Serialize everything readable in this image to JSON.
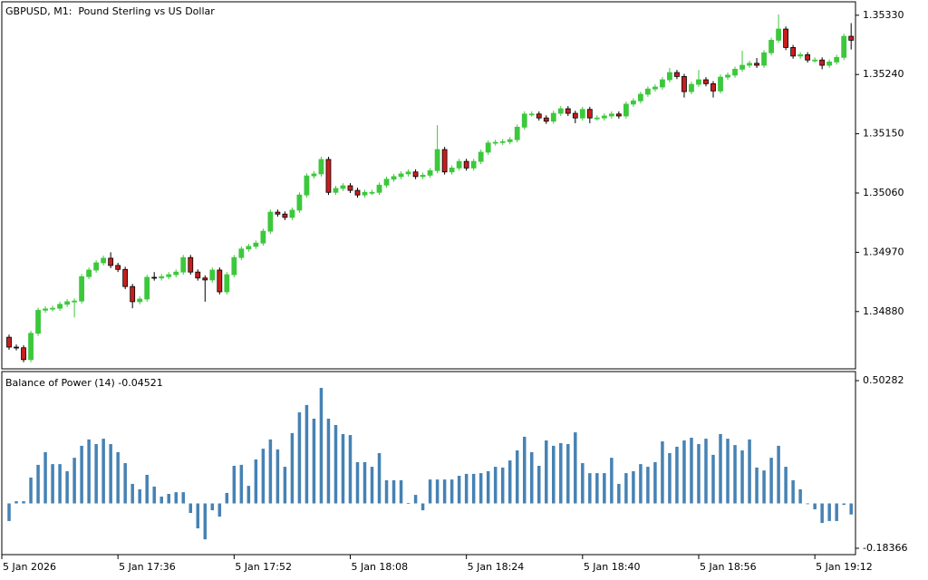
{
  "chart_data": [
    {
      "type": "candlestick",
      "title": "GBPUSD, M1:  Pound Sterling vs US Dollar",
      "up_color": "#3cc83c",
      "down_color": "#c81e1e",
      "xlim": [
        -1,
        116.6
      ],
      "ylim": [
        1.34793,
        1.35349
      ],
      "yticks": [
        {
          "value": 1.3533,
          "label": "1.35330"
        },
        {
          "value": 1.3524,
          "label": "1.35240"
        },
        {
          "value": 1.3515,
          "label": "1.35150"
        },
        {
          "value": 1.3506,
          "label": "1.35060"
        },
        {
          "value": 1.3497,
          "label": "1.34970"
        },
        {
          "value": 1.3488,
          "label": "1.34880"
        }
      ],
      "open": [
        1.34841,
        1.34826,
        1.34825,
        1.34807,
        1.34847,
        1.34882,
        1.34884,
        1.34885,
        1.34891,
        1.34895,
        1.34896,
        1.34933,
        1.34943,
        1.34954,
        1.34961,
        1.3495,
        1.34944,
        1.34918,
        1.34895,
        1.34899,
        1.34932,
        1.34931,
        1.34933,
        1.34936,
        1.3494,
        1.34962,
        1.3494,
        1.34931,
        1.34928,
        1.34943,
        1.3491,
        1.34936,
        1.34962,
        1.34975,
        1.34979,
        1.34984,
        1.35002,
        1.35031,
        1.35028,
        1.35023,
        1.35034,
        1.35057,
        1.35086,
        1.35089,
        1.35111,
        1.35061,
        1.35067,
        1.35071,
        1.35064,
        1.35057,
        1.35061,
        1.35061,
        1.35072,
        1.35081,
        1.35085,
        1.35089,
        1.35092,
        1.35085,
        1.35087,
        1.35094,
        1.35126,
        1.35092,
        1.35098,
        1.35108,
        1.35098,
        1.35108,
        1.35122,
        1.35136,
        1.35137,
        1.35138,
        1.35141,
        1.3516,
        1.3518,
        1.3518,
        1.35174,
        1.35169,
        1.35181,
        1.35188,
        1.35181,
        1.35174,
        1.35187,
        1.35174,
        1.35174,
        1.35177,
        1.3518,
        1.35177,
        1.35195,
        1.352,
        1.3521,
        1.35218,
        1.35221,
        1.35232,
        1.35243,
        1.35237,
        1.35214,
        1.35225,
        1.35232,
        1.35226,
        1.35215,
        1.35236,
        1.35239,
        1.35248,
        1.35254,
        1.35257,
        1.35254,
        1.35273,
        1.35292,
        1.35309,
        1.35281,
        1.35268,
        1.3527,
        1.35262,
        1.35262,
        1.35254,
        1.35259,
        1.35266,
        1.35298
      ],
      "high": [
        1.34845,
        1.3483,
        1.34829,
        1.34851,
        1.34886,
        1.34888,
        1.34889,
        1.34895,
        1.34899,
        1.349,
        1.34937,
        1.34947,
        1.34958,
        1.34965,
        1.3497,
        1.34954,
        1.34948,
        1.34922,
        1.34903,
        1.34936,
        1.3494,
        1.34937,
        1.3494,
        1.34944,
        1.34966,
        1.34966,
        1.34944,
        1.34935,
        1.34947,
        1.34947,
        1.3494,
        1.34966,
        1.34979,
        1.34983,
        1.34988,
        1.35006,
        1.35035,
        1.35035,
        1.35032,
        1.35038,
        1.35061,
        1.3509,
        1.35093,
        1.35115,
        1.35115,
        1.35071,
        1.35075,
        1.35075,
        1.35068,
        1.35065,
        1.35065,
        1.35076,
        1.35085,
        1.35089,
        1.35093,
        1.35096,
        1.35096,
        1.35091,
        1.35098,
        1.35163,
        1.3513,
        1.35102,
        1.35112,
        1.35112,
        1.35112,
        1.35126,
        1.3514,
        1.35141,
        1.35142,
        1.35145,
        1.35164,
        1.35184,
        1.35184,
        1.35184,
        1.35178,
        1.35185,
        1.35192,
        1.35192,
        1.35185,
        1.35191,
        1.35191,
        1.35178,
        1.35181,
        1.35184,
        1.35184,
        1.35199,
        1.35204,
        1.35214,
        1.35222,
        1.35225,
        1.35236,
        1.3525,
        1.35247,
        1.35241,
        1.35229,
        1.35247,
        1.35236,
        1.3523,
        1.3524,
        1.35243,
        1.35252,
        1.35276,
        1.35261,
        1.35265,
        1.35277,
        1.35296,
        1.35331,
        1.35313,
        1.35285,
        1.35274,
        1.35274,
        1.35266,
        1.35266,
        1.35263,
        1.3527,
        1.35302,
        1.35318
      ],
      "low": [
        1.34822,
        1.34821,
        1.34803,
        1.34803,
        1.34843,
        1.34878,
        1.3488,
        1.34881,
        1.34887,
        1.34871,
        1.34892,
        1.34929,
        1.34939,
        1.3495,
        1.34946,
        1.3494,
        1.34914,
        1.34885,
        1.34891,
        1.34895,
        1.34927,
        1.34927,
        1.34929,
        1.34932,
        1.34936,
        1.34936,
        1.34927,
        1.34895,
        1.34924,
        1.34906,
        1.34906,
        1.34932,
        1.34958,
        1.34971,
        1.34975,
        1.3498,
        1.34998,
        1.35024,
        1.35019,
        1.35019,
        1.3503,
        1.35053,
        1.35082,
        1.35085,
        1.35057,
        1.35057,
        1.35063,
        1.3506,
        1.35053,
        1.35053,
        1.35057,
        1.35057,
        1.35068,
        1.35077,
        1.35081,
        1.35085,
        1.35081,
        1.35081,
        1.35083,
        1.3509,
        1.35088,
        1.35088,
        1.35094,
        1.35094,
        1.35094,
        1.35104,
        1.35118,
        1.35132,
        1.35133,
        1.35134,
        1.35137,
        1.35156,
        1.35176,
        1.3517,
        1.35165,
        1.35165,
        1.35177,
        1.35177,
        1.35166,
        1.3517,
        1.35166,
        1.3517,
        1.3517,
        1.35173,
        1.35173,
        1.35173,
        1.35191,
        1.35196,
        1.35206,
        1.35214,
        1.35217,
        1.35228,
        1.35233,
        1.35205,
        1.3521,
        1.35221,
        1.35222,
        1.35205,
        1.35211,
        1.35232,
        1.35235,
        1.35244,
        1.3525,
        1.3525,
        1.3525,
        1.35269,
        1.35288,
        1.35277,
        1.35264,
        1.35264,
        1.35258,
        1.35258,
        1.35248,
        1.3525,
        1.35255,
        1.35262,
        1.35278
      ],
      "close": [
        1.34826,
        1.34825,
        1.34807,
        1.34847,
        1.34882,
        1.34884,
        1.34885,
        1.34891,
        1.34895,
        1.34896,
        1.34933,
        1.34943,
        1.34954,
        1.34961,
        1.3495,
        1.34944,
        1.34918,
        1.34895,
        1.34899,
        1.34932,
        1.34931,
        1.34933,
        1.34936,
        1.3494,
        1.34962,
        1.3494,
        1.34931,
        1.34928,
        1.34943,
        1.3491,
        1.34936,
        1.34962,
        1.34975,
        1.34979,
        1.34984,
        1.35002,
        1.35031,
        1.35028,
        1.35023,
        1.35034,
        1.35057,
        1.35086,
        1.35089,
        1.35111,
        1.35061,
        1.35067,
        1.35071,
        1.35064,
        1.35057,
        1.35061,
        1.35061,
        1.35072,
        1.35081,
        1.35085,
        1.35089,
        1.35092,
        1.35085,
        1.35087,
        1.35094,
        1.35126,
        1.35092,
        1.35098,
        1.35108,
        1.35098,
        1.35108,
        1.35122,
        1.35136,
        1.35137,
        1.35138,
        1.35141,
        1.3516,
        1.3518,
        1.3518,
        1.35174,
        1.35169,
        1.35181,
        1.35188,
        1.35181,
        1.35174,
        1.35187,
        1.35174,
        1.35174,
        1.35177,
        1.3518,
        1.35177,
        1.35195,
        1.352,
        1.3521,
        1.35218,
        1.35221,
        1.35232,
        1.35243,
        1.35237,
        1.35214,
        1.35225,
        1.35232,
        1.35226,
        1.35215,
        1.35236,
        1.35239,
        1.35248,
        1.35254,
        1.35257,
        1.35254,
        1.35273,
        1.35292,
        1.35309,
        1.35281,
        1.35268,
        1.3527,
        1.35262,
        1.35262,
        1.35254,
        1.35259,
        1.35266,
        1.35298,
        1.35292
      ]
    },
    {
      "type": "bar",
      "title": "Balance of Power (14) -0.04521",
      "color": "#4682b4",
      "xlim": [
        -1,
        116.6
      ],
      "ylim": [
        -0.2096,
        0.5399
      ],
      "yticks": [
        0.50282,
        -0.18366
      ],
      "xticks": [
        {
          "value": -1,
          "label": "5 Jan 2026"
        },
        {
          "value": 15,
          "label": "5 Jan 17:36"
        },
        {
          "value": 31,
          "label": "5 Jan 17:52"
        },
        {
          "value": 47,
          "label": "5 Jan 18:08"
        },
        {
          "value": 63,
          "label": "5 Jan 18:24"
        },
        {
          "value": 79,
          "label": "5 Jan 18:40"
        },
        {
          "value": 95,
          "label": "5 Jan 18:56"
        },
        {
          "value": 111,
          "label": "5 Jan 19:12"
        }
      ],
      "values": [
        -0.072,
        0.009,
        0.009,
        0.106,
        0.158,
        0.21,
        0.161,
        0.161,
        0.132,
        0.187,
        0.236,
        0.262,
        0.243,
        0.265,
        0.243,
        0.21,
        0.165,
        0.08,
        0.058,
        0.117,
        0.069,
        0.028,
        0.039,
        0.046,
        0.046,
        -0.039,
        -0.102,
        -0.147,
        -0.028,
        -0.054,
        0.043,
        0.154,
        0.158,
        0.072,
        0.18,
        0.224,
        0.262,
        0.221,
        0.15,
        0.288,
        0.373,
        0.403,
        0.347,
        0.473,
        0.347,
        0.321,
        0.284,
        0.28,
        0.169,
        0.169,
        0.15,
        0.206,
        0.095,
        0.095,
        0.095,
        0.002,
        0.035,
        -0.028,
        0.098,
        0.098,
        0.098,
        0.098,
        0.113,
        0.121,
        0.121,
        0.124,
        0.132,
        0.15,
        0.147,
        0.176,
        0.217,
        0.273,
        0.21,
        0.154,
        0.258,
        0.236,
        0.247,
        0.243,
        0.291,
        0.165,
        0.124,
        0.124,
        0.124,
        0.187,
        0.08,
        0.124,
        0.132,
        0.161,
        0.15,
        0.169,
        0.254,
        0.206,
        0.232,
        0.258,
        0.269,
        0.243,
        0.265,
        0.199,
        0.284,
        0.265,
        0.239,
        0.217,
        0.262,
        0.147,
        0.135,
        0.187,
        0.236,
        0.15,
        0.095,
        0.058,
        -0.002,
        -0.024,
        -0.08,
        -0.072,
        -0.072,
        -0.006,
        -0.04521
      ]
    }
  ]
}
